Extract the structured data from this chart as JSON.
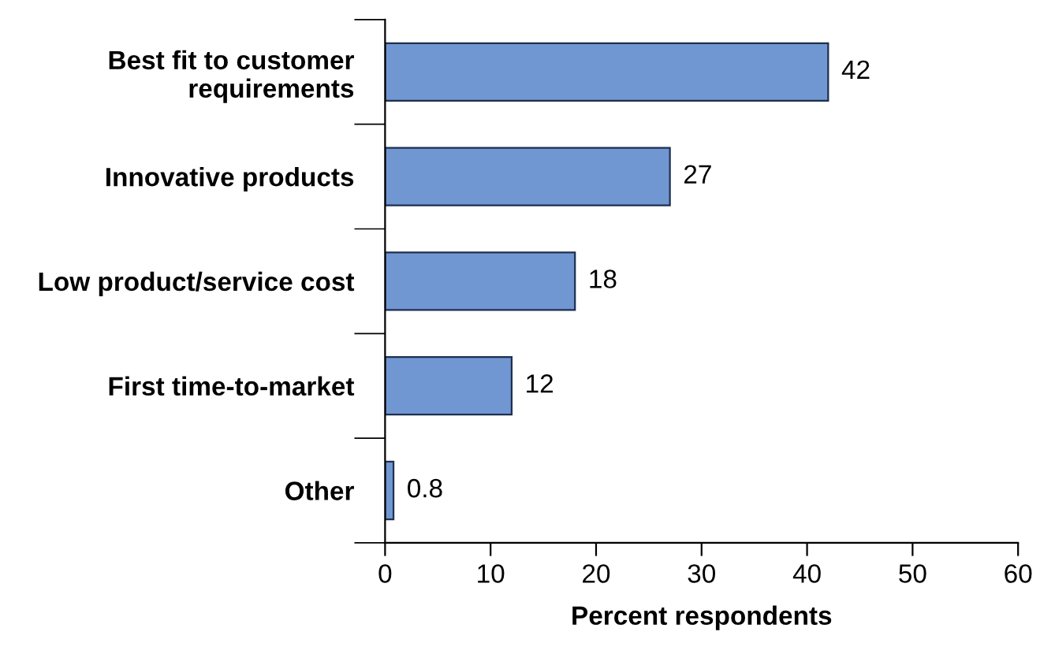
{
  "chart_data": {
    "type": "bar",
    "orientation": "horizontal",
    "xlabel": "Percent respondents",
    "categories": [
      "Best fit to customer\nrequirements",
      "Innovative products",
      "Low product/service cost",
      "First time-to-market",
      "Other"
    ],
    "values": [
      42,
      27,
      18,
      12,
      0.8
    ],
    "color": "#7097d2",
    "xlim": [
      0,
      60
    ],
    "xticks": [
      0,
      10,
      20,
      30,
      40,
      50,
      60
    ],
    "data_labels": true,
    "grid": false,
    "legend": false
  }
}
